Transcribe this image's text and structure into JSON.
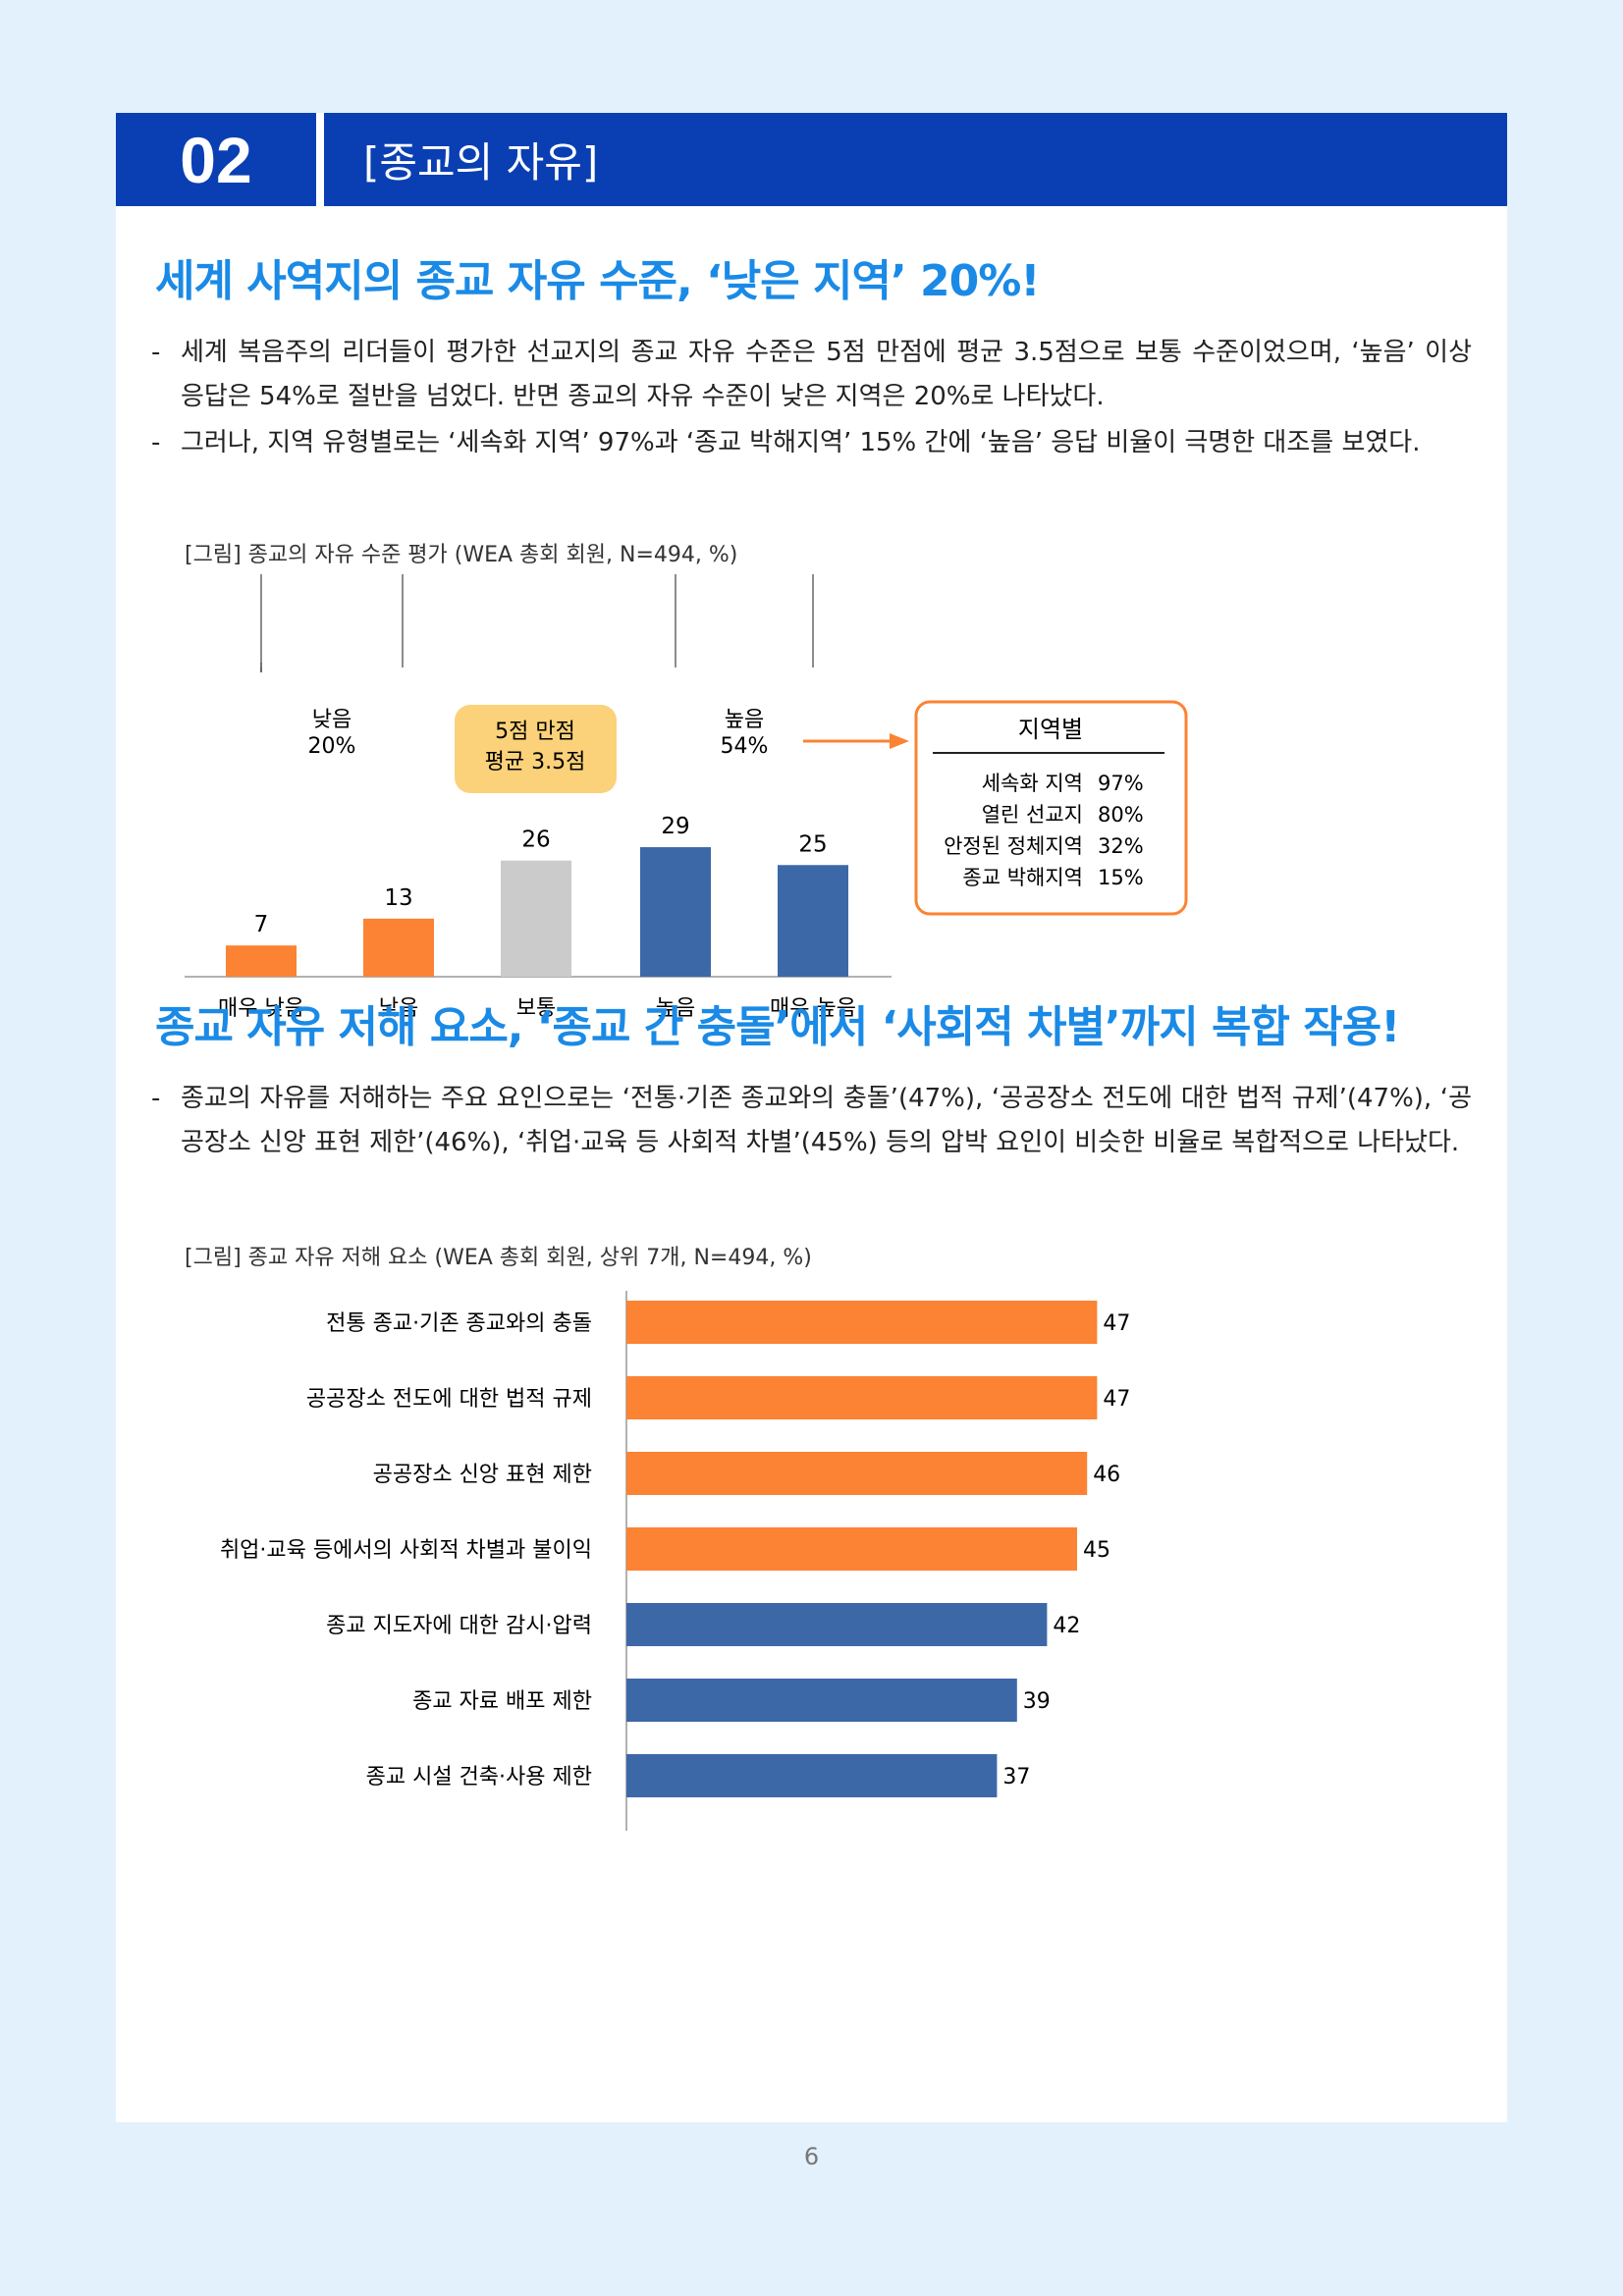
{
  "section": {
    "number": "02",
    "title": "[종교의 자유]"
  },
  "part1": {
    "headline": "세계 사역지의 종교 자유 수준, ‘낮은 지역’ 20%!",
    "bullets": [
      "세계 복음주의 리더들이 평가한 선교지의 종교 자유 수준은 5점 만점에 평균 3.5점으로 보통 수준이었으며, ‘높음’ 이상 응답은 54%로 절반을 넘었다. 반면 종교의 자유 수준이 낮은 지역은 20%로 나타났다.",
      "그러나, 지역 유형별로는 ‘세속화 지역’ 97%과 ‘종교 박해지역’ 15% 간에 ‘높음’ 응답 비율이 극명한 대조를 보였다."
    ],
    "caption": "[그림] 종교의 자유 수준 평가 (WEA 총회 회원, N=494, %)",
    "low_group": {
      "label": "낮음",
      "value": "20%"
    },
    "high_group": {
      "label": "높음",
      "value": "54%"
    },
    "score_badge": {
      "line1": "5점 만점",
      "line2": "평균 3.5점"
    },
    "region_box": {
      "title": "지역별",
      "rows": [
        {
          "name": "세속화 지역",
          "value": "97%"
        },
        {
          "name": "열린 선교지",
          "value": "80%"
        },
        {
          "name": "안정된 정체지역",
          "value": "32%"
        },
        {
          "name": "종교 박해지역",
          "value": "15%"
        }
      ]
    }
  },
  "part2": {
    "headline": "종교 자유 저해 요소, ‘종교 간 충돌’에서 ‘사회적 차별’까지 복합 작용!",
    "bullets": [
      "종교의 자유를 저해하는 주요 요인으로는 ‘전통·기존 종교와의 충돌’(47%), ‘공공장소 전도에 대한 법적 규제’(47%), ‘공공장소 신앙 표현 제한’(46%), ‘취업·교육 등 사회적 차별’(45%) 등의 압박 요인이 비슷한 비율로 복합적으로 나타났다."
    ],
    "caption": "[그림] 종교 자유 저해 요소 (WEA 총회 회원, 상위 7개, N=494, %)"
  },
  "colors": {
    "orange": "#fb8333",
    "gray": "#cbcbcb",
    "blue": "#3d68a8",
    "header": "#0a3fb4",
    "headline": "#1a8ae6",
    "badge": "#fbd27a"
  },
  "page_number": "6",
  "chart_data": [
    {
      "type": "bar",
      "categories": [
        "매우 낮음",
        "낮음",
        "보통",
        "높음",
        "매우 높음"
      ],
      "values": [
        7,
        13,
        26,
        29,
        25
      ],
      "bar_colors": [
        "#fb8333",
        "#fb8333",
        "#cbcbcb",
        "#3d68a8",
        "#3d68a8"
      ]
    },
    {
      "type": "bar",
      "orientation": "horizontal",
      "categories": [
        "전통 종교·기존 종교와의 충돌",
        "공공장소 전도에 대한 법적 규제",
        "공공장소 신앙 표현 제한",
        "취업·교육 등에서의 사회적 차별과 불이익",
        "종교 지도자에 대한 감시·압력",
        "종교 자료 배포 제한",
        "종교 시설 건축·사용 제한"
      ],
      "values": [
        47,
        47,
        46,
        45,
        42,
        39,
        37
      ],
      "bar_colors": [
        "#fb8333",
        "#fb8333",
        "#fb8333",
        "#fb8333",
        "#3d68a8",
        "#3d68a8",
        "#3d68a8"
      ]
    }
  ]
}
